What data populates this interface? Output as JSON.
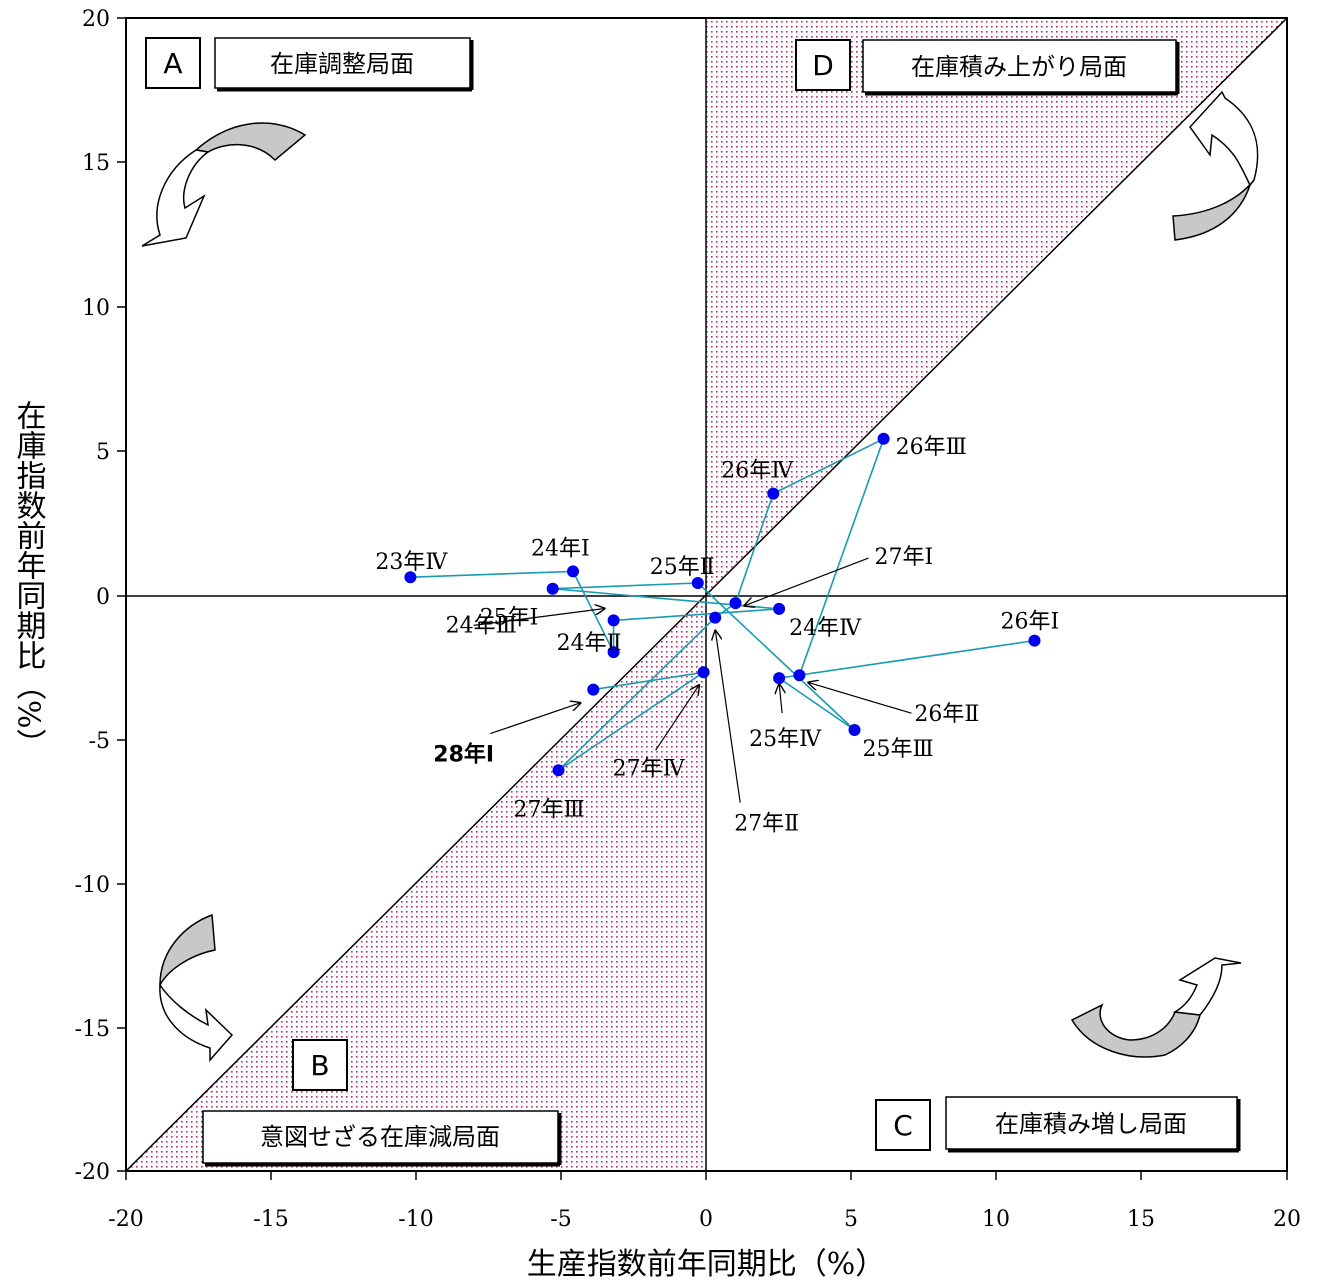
{
  "chart_data": {
    "type": "scatter",
    "title": "",
    "xlabel": "生産指数前年同期比（%）",
    "ylabel": "在庫指数前年同期比（%）",
    "xlim": [
      -20,
      20
    ],
    "ylim": [
      -20,
      20
    ],
    "xticks": [
      -20,
      -15,
      -10,
      -5,
      0,
      5,
      10,
      15,
      20
    ],
    "yticks": [
      -20,
      -15,
      -10,
      -5,
      0,
      5,
      10,
      15,
      20
    ],
    "xtick_labels": [
      "-20",
      "-15",
      "-10",
      "-5",
      "0",
      "5",
      "10",
      "15",
      "20"
    ],
    "ytick_labels": [
      "-20",
      "-15",
      "-10",
      "-5",
      "0",
      "5",
      "10",
      "15",
      "20"
    ],
    "grid": false,
    "reference_lines": [
      "x = 0",
      "y = 0",
      "y = x"
    ],
    "series": [
      {
        "color": "#1a9cb0",
        "marker_color": "#0000ee",
        "points": [
          {
            "label": "23年Ⅳ",
            "x": -10.2,
            "y": 0.6
          },
          {
            "label": "24年Ⅰ",
            "x": -4.6,
            "y": 0.8
          },
          {
            "label": "24年Ⅱ",
            "x": -3.2,
            "y": -2.0
          },
          {
            "label": "24年Ⅲ",
            "x": -3.2,
            "y": -0.9
          },
          {
            "label": "24年Ⅳ",
            "x": 2.5,
            "y": -0.5
          },
          {
            "label": "25年Ⅰ",
            "x": -5.3,
            "y": 0.2
          },
          {
            "label": "25年Ⅱ",
            "x": -0.3,
            "y": 0.4
          },
          {
            "label": "25年Ⅲ",
            "x": 5.1,
            "y": -4.7
          },
          {
            "label": "25年Ⅳ",
            "x": 2.5,
            "y": -2.9
          },
          {
            "label": "26年Ⅰ",
            "x": 11.3,
            "y": -1.6
          },
          {
            "label": "26年Ⅱ",
            "x": 3.2,
            "y": -2.8
          },
          {
            "label": "26年Ⅲ",
            "x": 6.1,
            "y": 5.4
          },
          {
            "label": "26年Ⅳ",
            "x": 2.3,
            "y": 3.5
          },
          {
            "label": "27年Ⅰ",
            "x": 1.0,
            "y": -0.3
          },
          {
            "label": "27年Ⅱ",
            "x": 0.3,
            "y": -0.8
          },
          {
            "label": "27年Ⅲ",
            "x": -5.1,
            "y": -6.1
          },
          {
            "label": "27年Ⅳ",
            "x": -0.1,
            "y": -2.7
          },
          {
            "label": "28年Ⅰ",
            "x": -3.9,
            "y": -3.3
          }
        ]
      }
    ],
    "quadrants": [
      {
        "letter": "A",
        "name": "在庫調整局面"
      },
      {
        "letter": "B",
        "name": "意図せざる在庫減局面"
      },
      {
        "letter": "C",
        "name": "在庫積み増し局面"
      },
      {
        "letter": "D",
        "name": "在庫積み上がり局面"
      }
    ]
  },
  "colors": {
    "line": "#1a9cb0",
    "marker": "#0000ee",
    "shade_dot": "#b0306e",
    "arrow_fill": "#c8c8c8"
  }
}
